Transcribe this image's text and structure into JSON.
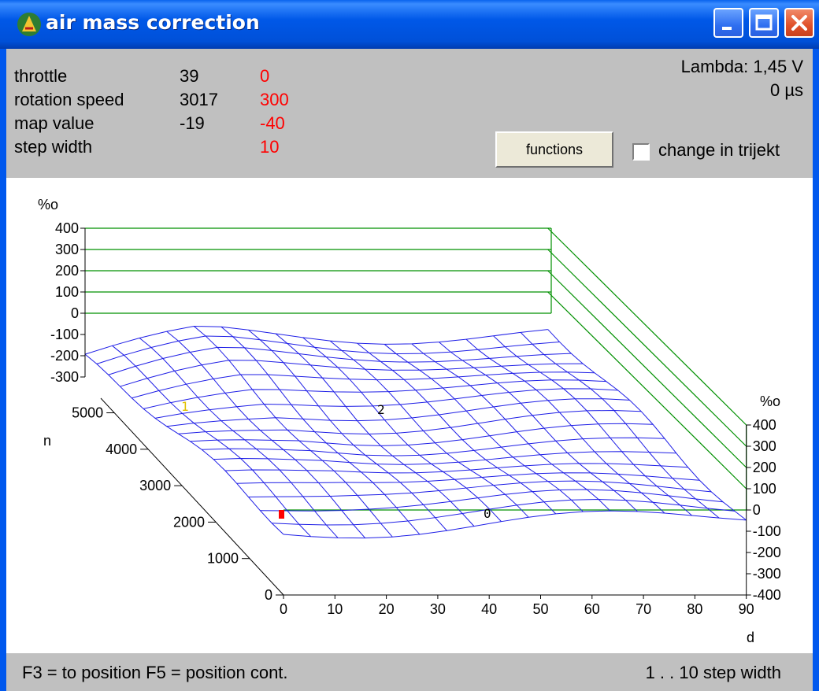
{
  "window": {
    "title": "air mass correction"
  },
  "info": {
    "rows": [
      {
        "label": "throttle",
        "value": "39",
        "setting": "0"
      },
      {
        "label": "rotation speed",
        "value": "3017",
        "setting": "300"
      },
      {
        "label": "map value",
        "value": "-19",
        "setting": "-40"
      },
      {
        "label": "step width",
        "value": "",
        "setting": "10"
      }
    ],
    "lambda": "Lambda: 1,45 V",
    "time": "0 µs",
    "functions_button": "functions",
    "checkbox_label": "change in trijekt",
    "checkbox_checked": false
  },
  "chart_data": {
    "type": "surface",
    "z_unit_left": "%o",
    "z_unit_right": "%o",
    "left_z_ticks": [
      "400",
      "300",
      "200",
      "100",
      "0",
      "-100",
      "-200",
      "-300"
    ],
    "right_z_ticks": [
      "400",
      "300",
      "200",
      "100",
      "0",
      "-100",
      "-200",
      "-300",
      "-400"
    ],
    "n_label": "n",
    "n_ticks": [
      "0",
      "1000",
      "2000",
      "3000",
      "4000",
      "5000"
    ],
    "d_label": "d",
    "d_ticks": [
      "0",
      "10",
      "20",
      "30",
      "40",
      "50",
      "60",
      "70",
      "80",
      "90"
    ],
    "markers": [
      "1",
      "2",
      "0"
    ],
    "colors": {
      "mesh": "#1e1ee6",
      "frame": "#009000",
      "marker_red": "#ff0000",
      "marker_yellow": "#e0c000"
    }
  },
  "status": {
    "left": "F3 = to position   F5 = position cont.",
    "right": "1 . . 10 step width"
  }
}
